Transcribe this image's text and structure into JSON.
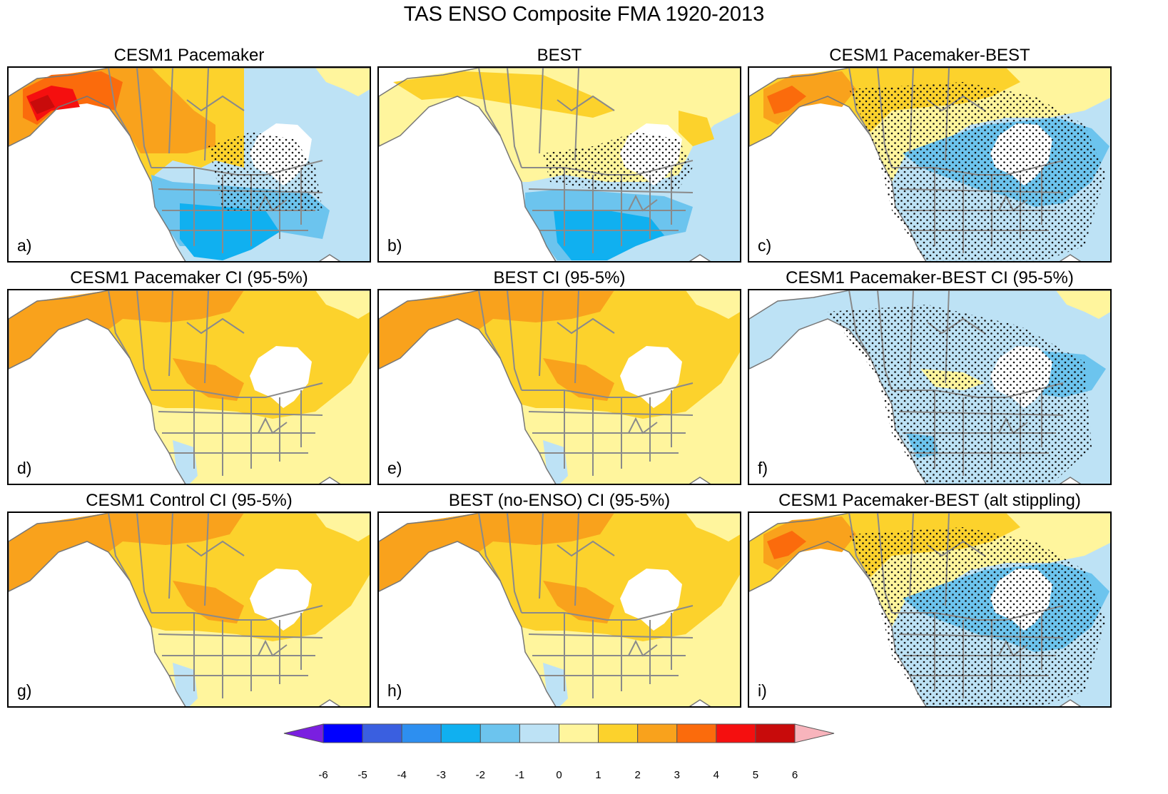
{
  "figure": {
    "title": "TAS ENSO Composite FMA 1920-2013"
  },
  "panels": [
    {
      "title": "CESM1 Pacemaker",
      "letter": "a)",
      "pattern": "enso"
    },
    {
      "title": "BEST",
      "letter": "b)",
      "pattern": "best"
    },
    {
      "title": "CESM1 Pacemaker-BEST",
      "letter": "c)",
      "pattern": "diff"
    },
    {
      "title": "CESM1 Pacemaker CI (95-5%)",
      "letter": "d)",
      "pattern": "ci"
    },
    {
      "title": "BEST CI (95-5%)",
      "letter": "e)",
      "pattern": "ci"
    },
    {
      "title": "CESM1 Pacemaker-BEST CI (95-5%)",
      "letter": "f)",
      "pattern": "diffci"
    },
    {
      "title": "CESM1 Control CI (95-5%)",
      "letter": "g)",
      "pattern": "ci"
    },
    {
      "title": "BEST (no-ENSO) CI (95-5%)",
      "letter": "h)",
      "pattern": "ci"
    },
    {
      "title": "CESM1 Pacemaker-BEST (alt stippling)",
      "letter": "i)",
      "pattern": "diff"
    }
  ],
  "colorbar": {
    "labels": [
      "-6",
      "-5",
      "-4",
      "-3",
      "-2",
      "-1",
      "0",
      "1",
      "2",
      "3",
      "4",
      "5",
      "6"
    ],
    "colors": [
      "#7a1fe0",
      "#0000ff",
      "#3a5fe0",
      "#2d8ff0",
      "#10b0f0",
      "#6cc4ee",
      "#bde2f5",
      "#fff59d",
      "#fcd22c",
      "#f9a21c",
      "#fb6b0c",
      "#f50f0f",
      "#c80b0b",
      "#f8b4bc"
    ]
  }
}
